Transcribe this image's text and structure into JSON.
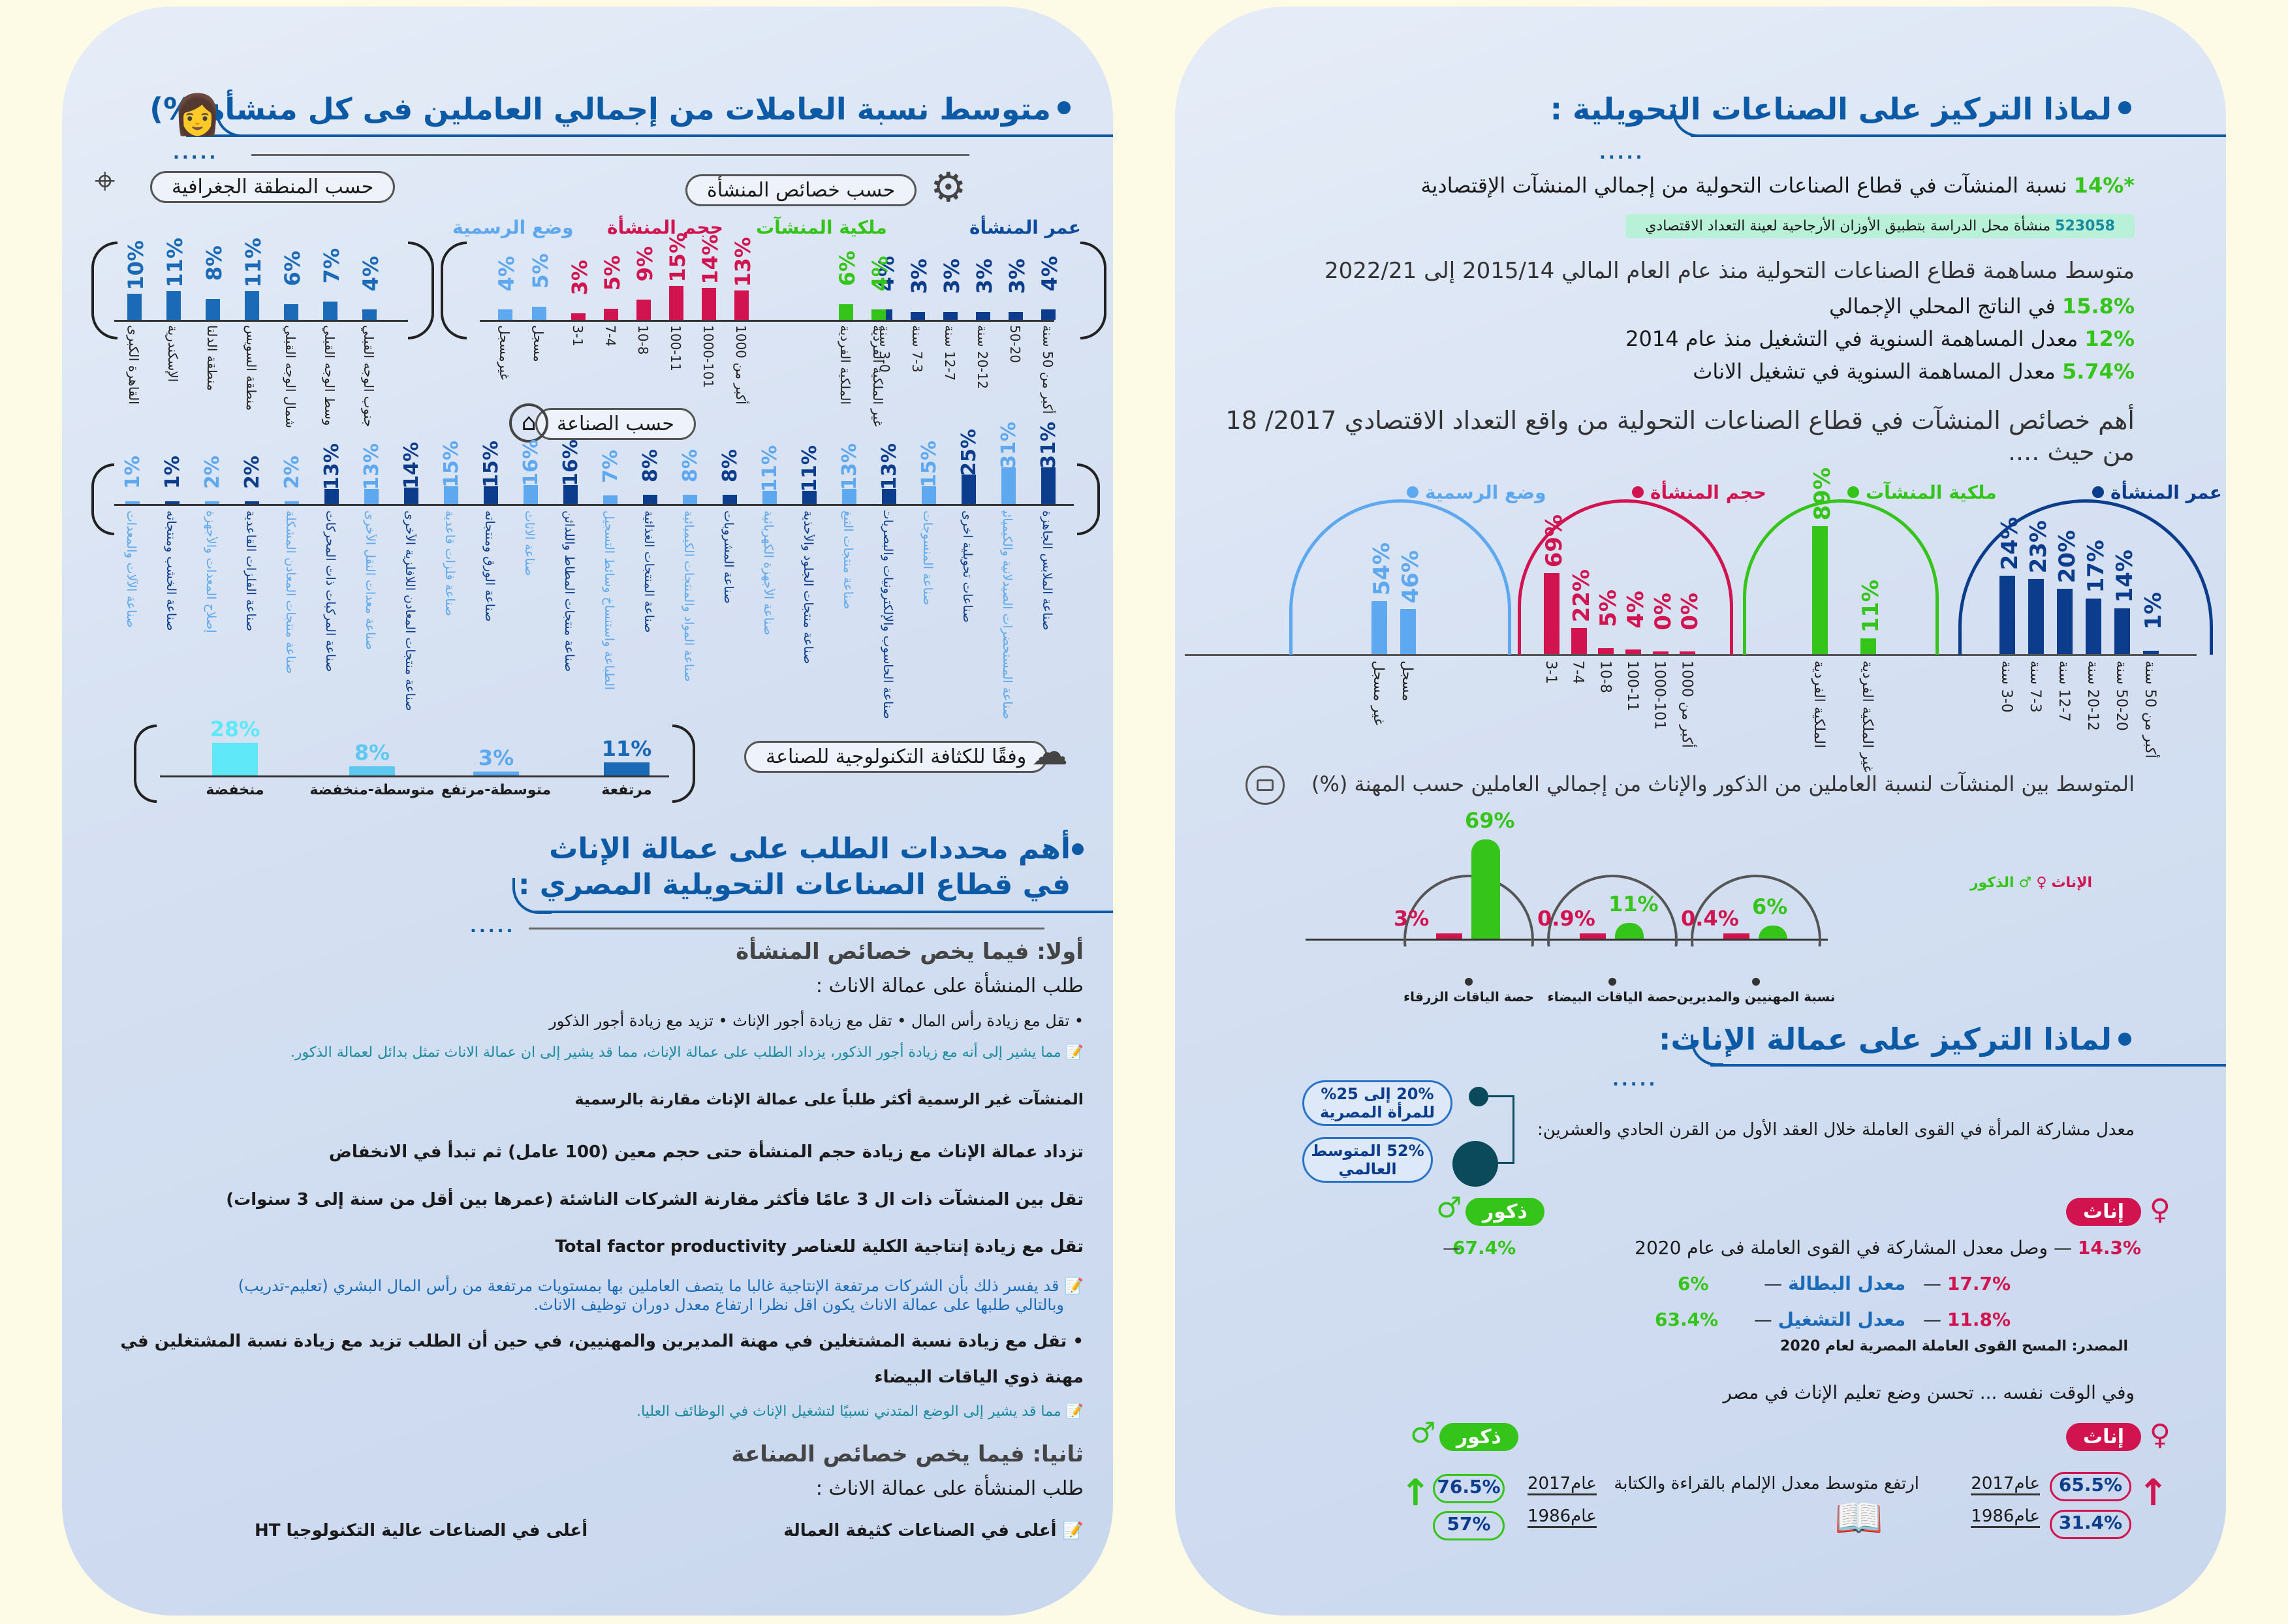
{
  "right": {
    "why_title": "لماذا التركيز على الصناعات التحويلية :",
    "stat1_pct": "*14%",
    "stat1_text": "نسبة المنشآت في قطاع الصناعات التحولية من إجمالي المنشآت الإقتصادية",
    "note_num": "523058",
    "note_text": "منشأة محل الدراسة بتطبيق الأوزان الأرجاحية لعينة التعداد الاقتصادي",
    "avg_title": "متوسط مساهمة قطاع الصناعات التحولية منذ عام العام المالي 2015/14 إلى 2022/21",
    "avg_items": [
      {
        "pct": "15.8%",
        "text": "في الناتج المحلي الإجمالي"
      },
      {
        "pct": "12%",
        "text": "معدل المساهمة السنوية في التشغيل منذ عام 2014"
      },
      {
        "pct": "5.74%",
        "text": "معدل المساهمة السنوية في تشغيل الاناث"
      }
    ],
    "chars_title_1": "أهم خصائص المنشآت في قطاع الصناعات التحولية من واقع التعداد الاقتصادي 2017/ 18",
    "chars_title_2": "من حيث ....",
    "arcs": [
      {
        "title": "عمر المنشأة",
        "color": "#0c3c8c",
        "values": [
          {
            "pct": "24%",
            "label": "3-0 سنة"
          },
          {
            "pct": "23%",
            "label": "7-3 سنة"
          },
          {
            "pct": "20%",
            "label": "12-7 سنة"
          },
          {
            "pct": "17%",
            "label": "20-12 سنة"
          },
          {
            "pct": "14%",
            "label": "50-20 سنة"
          },
          {
            "pct": "1%",
            "label": "أكبر من 50 سنة"
          }
        ]
      },
      {
        "title": "ملكية المنشآت",
        "color": "#34c41a",
        "values": [
          {
            "pct": "89%",
            "label": "الملكية الفردية"
          },
          {
            "pct": "11%",
            "label": "غير الملكية الفردية"
          }
        ]
      },
      {
        "title": "حجم المنشأة",
        "color": "#d1134f",
        "values": [
          {
            "pct": "69%",
            "label": "3-1"
          },
          {
            "pct": "22%",
            "label": "7-4"
          },
          {
            "pct": "5%",
            "label": "10-8"
          },
          {
            "pct": "4%",
            "label": "100-11"
          },
          {
            "pct": "0%",
            "label": "1000-101"
          },
          {
            "pct": "0%",
            "label": "أكبر من 1000"
          }
        ]
      },
      {
        "title": "وضع الرسمية",
        "color": "#5ea8f0",
        "values": [
          {
            "pct": "54%",
            "label": "غير مسجل"
          },
          {
            "pct": "46%",
            "label": "مسجل"
          }
        ]
      }
    ],
    "occ_title": "المتوسط بين المنشآت لنسبة العاملين من الذكور والإناث من إجمالي العاملين حسب المهنة (%)",
    "legend_female": "الإناث",
    "legend_male": "الذكور",
    "occ_groups": [
      {
        "label": "نسبة المهنيين والمديرين",
        "female": "0.4%",
        "male": "6%",
        "male_value": 6
      },
      {
        "label": "حصة الياقات البيضاء",
        "female": "0.9%",
        "male": "11%",
        "male_value": 11
      },
      {
        "label": "حصة الياقات الزرقاء",
        "female": "3%",
        "male": "69%",
        "male_value": 69
      }
    ],
    "women_title": "لماذا التركيز على عمالة الإناث:",
    "participation_text": "معدل مشاركة المرأة في القوى العاملة خلال العقد الأول من القرن الحادي والعشرين:",
    "oval1": "20% إلى 25% للمرأة المصرية",
    "oval2": "52% المتوسط العالمي",
    "female_badge": "إناث",
    "male_badge": "ذكور",
    "part_2020_text": "وصل معدل المشاركة في القوى العاملة فى عام 2020",
    "part_f": "14.3%",
    "part_m": "67.4%",
    "unemp_label": "معدل البطالة",
    "unemp_f": "17.7%",
    "unemp_m": "6%",
    "emp_label": "معدل التشغيل",
    "emp_f": "11.8%",
    "emp_m": "63.4%",
    "source": "المصدر: المسح القوى العاملة المصرية لعام 2020",
    "meanwhile": "وفي الوقت نفسه ... تحسن وضع تعليم الإناث في مصر",
    "literacy_text": "ارتفع متوسط معدل الإلمام بالقراءة والكتابة",
    "year_2017": "عام2017",
    "year_1986": "عام1986",
    "lit_f_2017": "65.5%",
    "lit_f_1986": "31.4%",
    "lit_m_2017": "76.5%",
    "lit_m_1986": "57%"
  },
  "left": {
    "title": "متوسط نسبة العاملات من إجمالي العاملين فى كل منشأة(%)",
    "pill_chars": "حسب خصائص المنشأة",
    "pill_region": "حسب المنطقة الجغرافية",
    "pill_industry": "حسب الصناعة",
    "pill_tech": "وفقًا للكثافة التكنولوجية للصناعة",
    "cat_age": "عمر المنشأة",
    "cat_own": "ملكية المنشآت",
    "cat_size": "حجم المنشأة",
    "cat_formal": "وضع الرسمية",
    "age": [
      {
        "pct": "4%",
        "label": "أكبر من 50 سنة"
      },
      {
        "pct": "3%",
        "label": "50-20"
      },
      {
        "pct": "3%",
        "label": "20-12 سنة"
      },
      {
        "pct": "3%",
        "label": "12-7 سنة"
      },
      {
        "pct": "3%",
        "label": "7-3 سنة"
      },
      {
        "pct": "4%",
        "label": "3-0 سنة"
      }
    ],
    "own": [
      {
        "pct": "4%",
        "label": "غير الملكية الفردية"
      },
      {
        "pct": "6%",
        "label": "الملكية الفردية"
      }
    ],
    "size": [
      {
        "pct": "13%",
        "label": "أكبر من 1000"
      },
      {
        "pct": "14%",
        "label": "1000-101"
      },
      {
        "pct": "15%",
        "label": "100-11"
      },
      {
        "pct": "9%",
        "label": "10-8"
      },
      {
        "pct": "5%",
        "label": "7-4"
      },
      {
        "pct": "3%",
        "label": "3-1"
      }
    ],
    "formal": [
      {
        "pct": "5%",
        "label": "مسجل"
      },
      {
        "pct": "4%",
        "label": "غيرمسجل"
      }
    ],
    "regions": [
      {
        "pct": "4%",
        "label": "جنوب الوجه القبلي"
      },
      {
        "pct": "7%",
        "label": "وسط الوجه القبلي"
      },
      {
        "pct": "6%",
        "label": "شمال الوجه القبلي"
      },
      {
        "pct": "11%",
        "label": "منطقة السويس"
      },
      {
        "pct": "8%",
        "label": "منطقة الدلتا"
      },
      {
        "pct": "11%",
        "label": "الإسكندرية"
      },
      {
        "pct": "10%",
        "label": "القاهرة الكبرى"
      }
    ],
    "industries": [
      {
        "pct": "31%",
        "label": "صناعة الملابس الجاهزة"
      },
      {
        "pct": "31%",
        "label": "صناعة المستحضرات الصيدلانية والكيميائية"
      },
      {
        "pct": "25%",
        "label": "صناعات تحويلية اخرى"
      },
      {
        "pct": "15%",
        "label": "صناعة المنسوجات"
      },
      {
        "pct": "13%",
        "label": "صناعة الحاسوب والإلكترونيات والبصريات"
      },
      {
        "pct": "13%",
        "label": "صناعة منتجات التبغ"
      },
      {
        "pct": "11%",
        "label": "صناعة منتجات الجلود والأحذية"
      },
      {
        "pct": "11%",
        "label": "صناعة الأجهزة الكهربائية"
      },
      {
        "pct": "8%",
        "label": "صناعة المشروبات"
      },
      {
        "pct": "8%",
        "label": "صناعة المواد والمنتجات الكيميائية"
      },
      {
        "pct": "8%",
        "label": "صناعة المنتجات الغذائية"
      },
      {
        "pct": "7%",
        "label": "الطباعة واستنساخ وسائط التسجيل"
      },
      {
        "pct": "16%",
        "label": "صناعة منتجات المطاط واللدائن"
      },
      {
        "pct": "16%",
        "label": "صناعة الاثاث"
      },
      {
        "pct": "15%",
        "label": "صناعة الورق ومنتجاته"
      },
      {
        "pct": "15%",
        "label": "صناعة فلزات قاعدية"
      },
      {
        "pct": "14%",
        "label": "صناعة منتجات المعادن اللافلزية الأخرى"
      },
      {
        "pct": "13%",
        "label": "صناعة معدات النقل الأخرى"
      },
      {
        "pct": "13%",
        "label": "صناعة المركبات ذات المحركات"
      },
      {
        "pct": "2%",
        "label": "صناعة منتجات المعادن المشكلة"
      },
      {
        "pct": "2%",
        "label": "صناعة الفلزات القاعدية"
      },
      {
        "pct": "2%",
        "label": "إصلاح المعدات والأجهزة"
      },
      {
        "pct": "1%",
        "label": "صناعة الخشب ومنتجاته"
      },
      {
        "pct": "1%",
        "label": "صناعة الآلات والمعدات"
      }
    ],
    "tech": [
      {
        "pct": "11%",
        "label": "مرتفعة",
        "value": 11
      },
      {
        "pct": "3%",
        "label": "متوسطة-مرتفع",
        "value": 3
      },
      {
        "pct": "8%",
        "label": "متوسطة-منخفضة",
        "value": 8
      },
      {
        "pct": "28%",
        "label": "منخفضة",
        "value": 28
      }
    ],
    "demand_title_1": "أهم محددات الطلب على عمالة الإناث",
    "demand_title_2": "في قطاع الصناعات التحويلية المصري :",
    "first_title": "أولا: فيما يخص خصائص المنشأة",
    "demand_sub": "طلب المنشأة على عمالة الاناث :",
    "bullets_row": "• تقل مع زيادة رأس المال   • تقل مع زيادة أجور الإناث   • تزيد مع زيادة أجور الذكور",
    "note1": "مما يشير إلى أنه مع زيادة أجور الذكور، يزداد الطلب على عمالة الإناث، مما قد يشير إلى ان عمالة الاناث تمثل بدائل لعمالة الذكور.",
    "informal": "المنشآت غير الرسمية أكثر طلباً على عمالة الإناث مقارنة بالرسمية",
    "line_increase": "تزداد  عمالة الإناث مع زيادة حجم المنشأة حتى حجم معين (100 عامل) ثم تبدأ في الانخفاض",
    "line_decrease": "تقل  بين المنشآت ذات ال 3 عامًا فأكثر مقارنة الشركات الناشئة (عمرها بين أقل من سنة إلى 3 سنوات)",
    "line_tfp": "تقل  مع زيادة إنتاجية الكلية للعناصر Total factor productivity",
    "note2_1": "قد يفسر ذلك بأن الشركات مرتفعة الإنتاجية غالبا ما يتصف العاملين بها بمستويات مرتفعة من رأس المال البشري (تعليم-تدريب)",
    "note2_2": "وبالتالي طلبها على عمالة الاناث يكون اقل نظرا ارتفاع معدل دوران توظيف الاناث.",
    "line_managers_1": "• تقل مع زيادة نسبة المشتغلين في مهنة المديرين والمهنيين، في حين أن الطلب تزيد مع زيادة نسبة المشتغلين في",
    "line_managers_2": "مهنة ذوي الياقات البيضاء",
    "note3": "مما قد يشير إلى الوضع المتدني نسبيًا لتشغيل الإناث في الوظائف العليا.",
    "second_title": "ثانيا: فيما يخص خصائص الصناعة",
    "second_sub": "طلب المنشأة على عمالة الاناث :",
    "high_labor": "أعلى في الصناعات كثيفة العمالة",
    "high_tech": "أعلى في الصناعات عالية التكنولوجيا HT"
  }
}
